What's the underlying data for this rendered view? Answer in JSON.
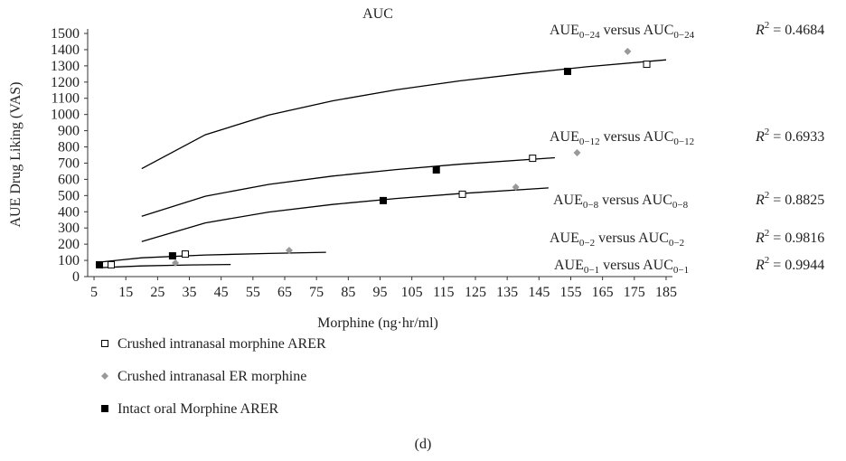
{
  "chart_data": {
    "type": "scatter",
    "title": "AUC",
    "x_label": "Morphine (ng·hr/ml)",
    "y_label": "AUE Drug Liking (VAS)",
    "xlim": [
      3,
      187
    ],
    "ylim": [
      0,
      1500
    ],
    "xticks": [
      5,
      15,
      25,
      35,
      45,
      55,
      65,
      75,
      85,
      95,
      105,
      115,
      125,
      135,
      145,
      155,
      165,
      175,
      185
    ],
    "yticks": [
      0,
      100,
      200,
      300,
      400,
      500,
      600,
      700,
      800,
      900,
      1000,
      1100,
      1200,
      1300,
      1400,
      1500
    ],
    "series": [
      {
        "name": "Crushed intranasal morphine ARER",
        "color": "#000000",
        "marker": "square-open",
        "x": [
          10.4,
          33.7,
          120.9,
          143,
          178.9
        ],
        "values": [
          73,
          139,
          508,
          730,
          1310
        ]
      },
      {
        "name": "Crushed intranasal ER morphine",
        "color": "#999999",
        "marker": "diamond",
        "x": [
          30.6,
          66.4,
          137.7,
          157,
          172.9
        ],
        "values": [
          84,
          162,
          552,
          764,
          1389
        ]
      },
      {
        "name": "Intact oral Morphine ARER",
        "color": "#000000",
        "marker": "square",
        "x": [
          6.7,
          29.7,
          96,
          112.7,
          154
        ],
        "values": [
          73,
          128,
          469,
          658,
          1266
        ]
      }
    ],
    "fits": [
      {
        "color": "#000000",
        "x": [
          20,
          40,
          60,
          80,
          100,
          120,
          140,
          160,
          185
        ],
        "values": [
          666,
          875,
          997,
          1084,
          1152,
          1207,
          1253,
          1294,
          1337
        ]
      },
      {
        "color": "#000000",
        "x": [
          20,
          40,
          60,
          80,
          100,
          120,
          150
        ],
        "values": [
          372,
          496,
          569,
          620,
          660,
          693,
          733
        ]
      },
      {
        "color": "#000000",
        "x": [
          20,
          40,
          60,
          80,
          100,
          120,
          148
        ],
        "values": [
          216,
          331,
          398,
          445,
          482,
          512,
          547
        ]
      },
      {
        "color": "#000000",
        "x": [
          7,
          20,
          40,
          60,
          78
        ],
        "values": [
          90,
          116,
          133,
          143,
          150
        ]
      },
      {
        "color": "#000000",
        "x": [
          7,
          20,
          35,
          48
        ],
        "values": [
          55,
          66,
          72,
          75
        ]
      }
    ],
    "annotations": [
      {
        "parts": [
          "AUE",
          "0−24",
          " versus AUC",
          "0−24"
        ],
        "r2": [
          "R",
          "2",
          " = 0.4684"
        ]
      },
      {
        "parts": [
          "AUE",
          "0−12",
          " versus AUC",
          "0−12"
        ],
        "r2": [
          "R",
          "2",
          " = 0.6933"
        ]
      },
      {
        "parts": [
          "AUE",
          "0−8",
          " versus AUC",
          "0−8"
        ],
        "r2": [
          "R",
          "2",
          " = 0.8825"
        ]
      },
      {
        "parts": [
          "AUE",
          "0−2",
          " versus AUC",
          "0−2"
        ],
        "r2": [
          "R",
          "2",
          " = 0.9816"
        ]
      },
      {
        "parts": [
          "AUE",
          "0−1",
          " versus AUC",
          "0−1"
        ],
        "r2": [
          "R",
          "2",
          " = 0.9944"
        ]
      }
    ],
    "caption": "(d)"
  }
}
